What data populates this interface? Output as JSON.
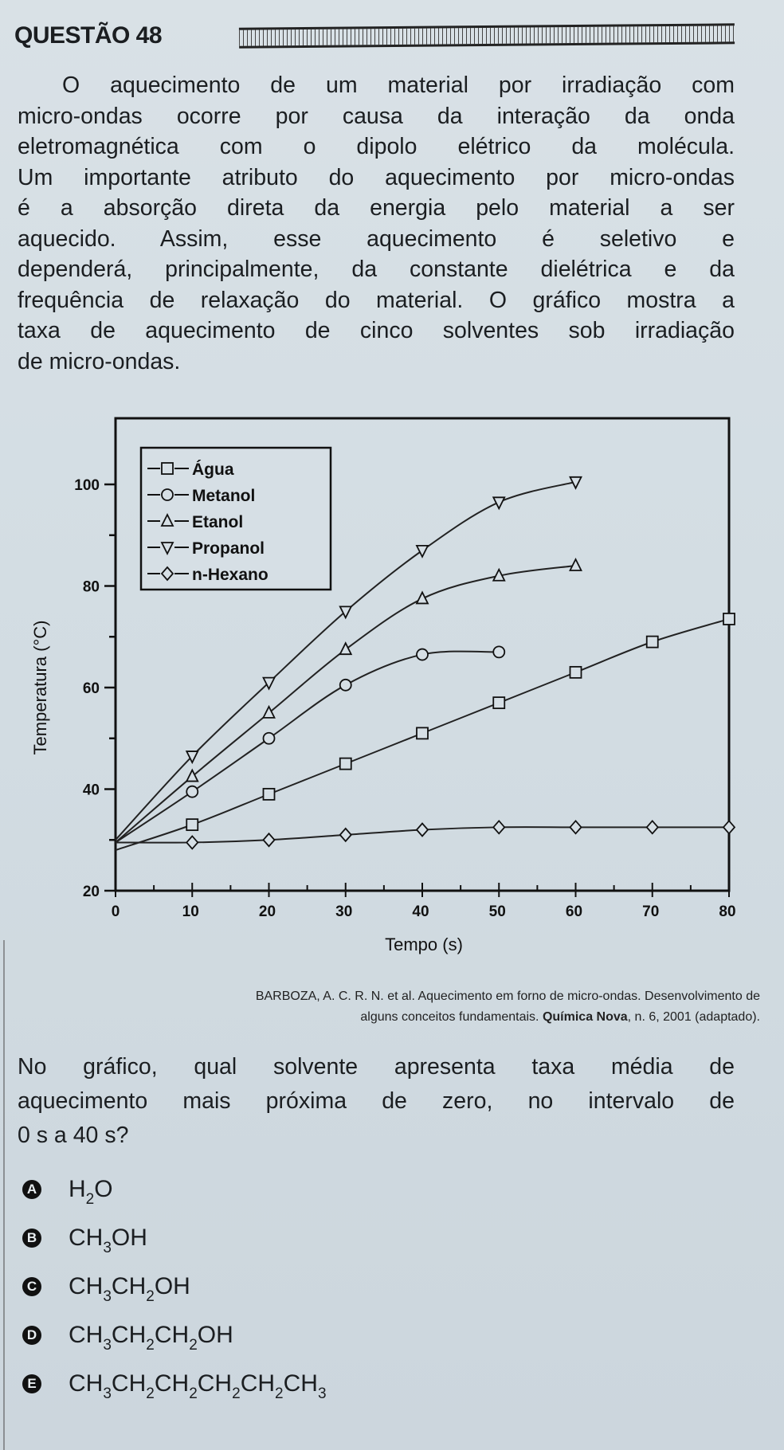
{
  "header": {
    "title": "QUESTÃO 48"
  },
  "intro": {
    "lines": [
      "O aquecimento de um material por irradiação com",
      "micro-ondas ocorre por causa da interação da onda",
      "eletromagnética com o dipolo elétrico da molécula.",
      "Um importante atributo do aquecimento por micro-ondas",
      "é a absorção direta da energia pelo material a ser",
      "aquecido. Assim, esse aquecimento é seletivo e",
      "dependerá, principalmente, da constante dielétrica e da",
      "frequência de relaxação do material. O gráfico mostra a",
      "taxa de aquecimento de cinco solventes sob irradiação",
      "de micro-ondas."
    ]
  },
  "chart_data": {
    "type": "line",
    "title": "",
    "xlabel": "Tempo (s)",
    "ylabel": "Temperatura (°C)",
    "xlim": [
      0,
      80
    ],
    "ylim": [
      20,
      110
    ],
    "xticks": [
      0,
      10,
      20,
      30,
      40,
      50,
      60,
      70,
      80
    ],
    "yticks": [
      20,
      40,
      60,
      80,
      100
    ],
    "grid": false,
    "legend_position": "upper left",
    "series": [
      {
        "name": "Água",
        "marker": "square",
        "x": [
          0,
          10,
          20,
          30,
          40,
          50,
          60,
          70,
          80
        ],
        "values": [
          28,
          33,
          39,
          45,
          51,
          57,
          63,
          69,
          73.5
        ]
      },
      {
        "name": "Metanol",
        "marker": "circle",
        "x": [
          0,
          10,
          20,
          30,
          40,
          50
        ],
        "values": [
          29.5,
          39.5,
          50,
          60.5,
          66.5,
          67
        ]
      },
      {
        "name": "Etanol",
        "marker": "triangle-up",
        "x": [
          0,
          10,
          20,
          30,
          40,
          50,
          60
        ],
        "values": [
          29.5,
          42.5,
          55,
          67.5,
          77.5,
          82,
          84
        ]
      },
      {
        "name": "Propanol",
        "marker": "triangle-down",
        "x": [
          0,
          10,
          20,
          30,
          40,
          50,
          60
        ],
        "values": [
          30,
          46.5,
          61,
          75,
          87,
          96.5,
          100.5
        ]
      },
      {
        "name": "n-Hexano",
        "marker": "diamond",
        "x": [
          0,
          10,
          20,
          30,
          40,
          50,
          60,
          70,
          80
        ],
        "values": [
          29.5,
          29.5,
          30,
          31,
          32,
          32.5,
          32.5,
          32.5,
          32.5
        ]
      }
    ]
  },
  "citation": {
    "line1": "BARBOZA, A. C. R. N. et al. Aquecimento em forno de micro-ondas. Desenvolvimento de",
    "line2_pre": "alguns conceitos fundamentais. ",
    "line2_bold": "Química Nova",
    "line2_post": ", n. 6, 2001 (adaptado)."
  },
  "question": {
    "lines": [
      "No gráfico, qual solvente apresenta taxa média de",
      "aquecimento mais próxima de zero, no intervalo de",
      "0 s a 40 s?"
    ]
  },
  "options": [
    {
      "letter": "A",
      "formula": [
        [
          "H",
          ""
        ],
        [
          "",
          "2"
        ],
        [
          "O",
          ""
        ]
      ]
    },
    {
      "letter": "B",
      "formula": [
        [
          "CH",
          ""
        ],
        [
          "",
          "3"
        ],
        [
          "OH",
          ""
        ]
      ]
    },
    {
      "letter": "C",
      "formula": [
        [
          "CH",
          ""
        ],
        [
          "",
          "3"
        ],
        [
          "CH",
          ""
        ],
        [
          "",
          "2"
        ],
        [
          "OH",
          ""
        ]
      ]
    },
    {
      "letter": "D",
      "formula": [
        [
          "CH",
          ""
        ],
        [
          "",
          "3"
        ],
        [
          "CH",
          ""
        ],
        [
          "",
          "2"
        ],
        [
          "CH",
          ""
        ],
        [
          "",
          "2"
        ],
        [
          "OH",
          ""
        ]
      ]
    },
    {
      "letter": "E",
      "formula": [
        [
          "CH",
          ""
        ],
        [
          "",
          "3"
        ],
        [
          "CH",
          ""
        ],
        [
          "",
          "2"
        ],
        [
          "CH",
          ""
        ],
        [
          "",
          "2"
        ],
        [
          "CH",
          ""
        ],
        [
          "",
          "2"
        ],
        [
          "CH",
          ""
        ],
        [
          "",
          "2"
        ],
        [
          "CH",
          ""
        ],
        [
          "",
          "3"
        ]
      ]
    }
  ]
}
